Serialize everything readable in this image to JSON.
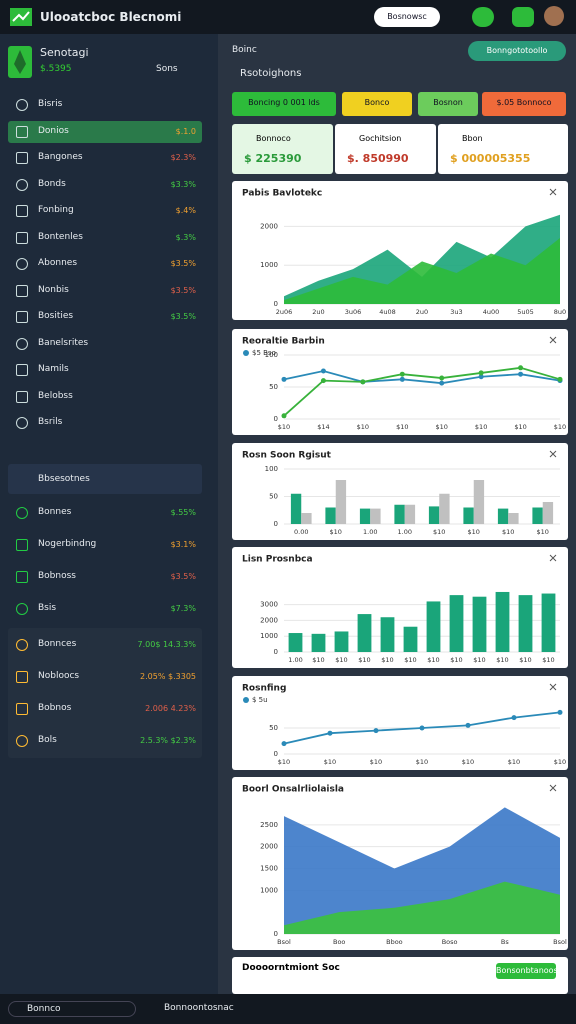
{
  "header": {
    "title": "Ulooatcboc Blecnomi",
    "button": "Bosnowsc"
  },
  "sidebar": {
    "brand": "Senotagi",
    "brand_sub": "$.5395",
    "search": "Sons",
    "items": [
      {
        "label": "Bisris"
      },
      {
        "label": "Donios",
        "value": "$.1.0"
      },
      {
        "label": "Bangones",
        "value": "$2.3%"
      },
      {
        "label": "Bonds",
        "value": "$3.3%"
      },
      {
        "label": "Fonbing",
        "value": "$.4%"
      },
      {
        "label": "Bontenles",
        "value": "$.3%"
      },
      {
        "label": "Abonnes",
        "value": "$3.5%"
      },
      {
        "label": "Nonbis",
        "value": "$3.5%"
      },
      {
        "label": "Bosities",
        "value": "$3.5%"
      },
      {
        "label": "Banelsrites"
      },
      {
        "label": "Namils"
      },
      {
        "label": "Belobss"
      },
      {
        "label": "Bsrils"
      }
    ],
    "group": "Bbsesotnes",
    "group_items": [
      {
        "label": "Bonnes",
        "value": "$.55%"
      },
      {
        "label": "Nogerbindng",
        "value": "$3.1%"
      },
      {
        "label": "Bobnoss",
        "value": "$3.5%"
      },
      {
        "label": "Bsis",
        "value": "$7.3%"
      }
    ],
    "totals": [
      {
        "label": "Bonnces",
        "value": "7.00$ 14.3.3%"
      },
      {
        "label": "Nobloocs",
        "value": "2.05% $.3305"
      },
      {
        "label": "Bobnos",
        "value": "2.006 4.23%"
      },
      {
        "label": "Bols",
        "value": "2.5.3% $2.3%"
      }
    ]
  },
  "main": {
    "section": "Boinc",
    "title": "Rsotoighons",
    "pill": "Bonngototoollo",
    "buttons": [
      "Boncing 0 001 lds",
      "Bonco",
      "Bosnon",
      "$.05 Bonnoco"
    ]
  },
  "kpis": [
    {
      "label": "Bonnoco",
      "value": "$ 225390"
    },
    {
      "label": "Gochitsion",
      "value": "$. 850990"
    },
    {
      "label": "Bbon",
      "value": "$ 000005355"
    }
  ],
  "charts": [
    {
      "type": "area",
      "title": "Pabis Bavlotekc",
      "categories": [
        "2u06",
        "2u0",
        "3u06",
        "4u08",
        "2u0",
        "3u3",
        "4u00",
        "5u05",
        "8u0"
      ],
      "ylim": [
        0,
        2500
      ],
      "yticks": [
        0,
        1000,
        2000
      ],
      "series": [
        {
          "color": "#1aa57a",
          "values": [
            200,
            600,
            900,
            1400,
            700,
            1600,
            1200,
            2000,
            2300
          ]
        },
        {
          "color": "#2dbb3a",
          "values": [
            100,
            400,
            700,
            500,
            1100,
            800,
            1300,
            1000,
            1700
          ]
        }
      ]
    },
    {
      "type": "line",
      "title": "Reoraltie Barbin",
      "categories": [
        "$10",
        "$14",
        "$10",
        "$10",
        "$10",
        "$10",
        "$10",
        "$10"
      ],
      "ylim": [
        0,
        100
      ],
      "yticks": [
        0,
        50,
        100
      ],
      "series": [
        {
          "name": "$5 Bso",
          "color": "#2a8ab8",
          "values": [
            62,
            75,
            58,
            62,
            56,
            66,
            70,
            60
          ]
        },
        {
          "color": "#38b23b",
          "values": [
            5,
            60,
            58,
            70,
            64,
            72,
            80,
            62
          ]
        }
      ]
    },
    {
      "type": "bar",
      "title": "Rosn Soon Rgisut",
      "categories": [
        "0.00",
        "$10",
        "1.00",
        "1.00",
        "$10",
        "$10",
        "$10",
        "$10"
      ],
      "ylim": [
        0,
        100
      ],
      "yticks": [
        0,
        50,
        100
      ],
      "series": [
        {
          "color": "#1aa57a",
          "values": [
            55,
            30,
            28,
            35,
            32,
            30,
            28,
            30
          ]
        },
        {
          "color": "#c0c0c0",
          "values": [
            20,
            80,
            28,
            35,
            55,
            80,
            20,
            40
          ]
        }
      ]
    },
    {
      "type": "bar",
      "title": "Lisn Prosnbca",
      "categories": [
        "1.00",
        "$10",
        "$10",
        "$10",
        "$10",
        "$10",
        "$10",
        "$10",
        "$10",
        "$10",
        "$10",
        "$10"
      ],
      "ylim": [
        0,
        5000
      ],
      "yticks": [
        0,
        1000,
        2000,
        3000
      ],
      "series": [
        {
          "color": "#1aa57a",
          "values": [
            1200,
            1150,
            1300,
            2400,
            2200,
            1600,
            3200,
            3600,
            3500,
            3800,
            3600,
            3700
          ]
        }
      ]
    },
    {
      "type": "line",
      "title": "Rosnfing",
      "categories": [
        "$10",
        "$10",
        "$10",
        "$10",
        "$10",
        "$10",
        "$10"
      ],
      "ylim": [
        0,
        100
      ],
      "yticks": [
        0,
        50
      ],
      "series": [
        {
          "name": "$ 5u",
          "color": "#2a8ab8",
          "values": [
            20,
            40,
            45,
            50,
            55,
            70,
            80
          ]
        }
      ]
    },
    {
      "type": "area",
      "title": "Boorl Onsalrliolaisla",
      "categories": [
        "Bsol",
        "Boo",
        "Bboo",
        "Boso",
        "Bs",
        "Bsol"
      ],
      "ylim": [
        0,
        3000
      ],
      "yticks": [
        0,
        1000,
        1500,
        2000,
        2500
      ],
      "series": [
        {
          "color": "#3a78c8",
          "values": [
            2700,
            2100,
            1500,
            2000,
            2900,
            2200
          ]
        },
        {
          "color": "#3cc23c",
          "values": [
            200,
            500,
            600,
            800,
            1200,
            900
          ]
        }
      ]
    }
  ],
  "footer_panel": {
    "title": "Doooorntmiont Soc",
    "button": "Bonsonbtanoos"
  },
  "status": {
    "dropdown": "Bonnco",
    "text": "Bonnoontosnac"
  }
}
